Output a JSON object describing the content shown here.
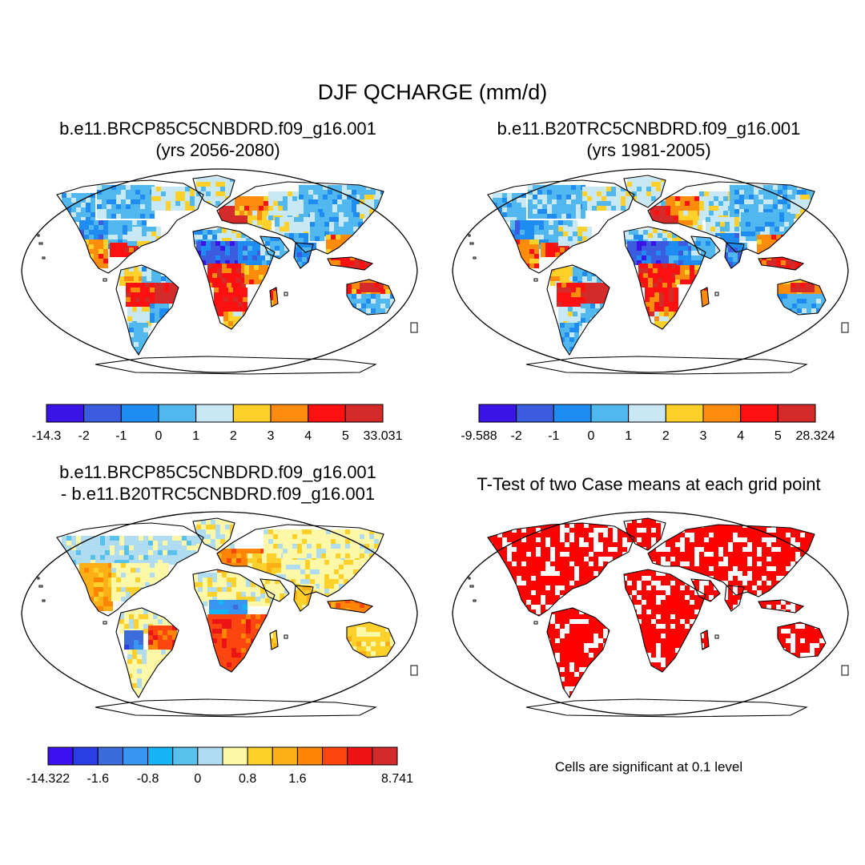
{
  "figure": {
    "title": "DJF QCHARGE (mm/d)"
  },
  "panels": [
    {
      "id": "case1",
      "title_line1": "b.e11.BRCP85C5CNBDRD.f09_g16.001",
      "title_line2": "(yrs 2056-2080)",
      "colorbar": {
        "colors": [
          "#3a14e6",
          "#3b5ce0",
          "#1e8cf0",
          "#50b8ee",
          "#c8e8f6",
          "#fdd02a",
          "#fd8c0c",
          "#fc1010",
          "#d42a2a"
        ],
        "labels": [
          "-14.3",
          "-2",
          "-1",
          "0",
          "1",
          "2",
          "3",
          "4",
          "5",
          "33.031"
        ]
      }
    },
    {
      "id": "case2",
      "title_line1": "b.e11.B20TRC5CNBDRD.f09_g16.001",
      "title_line2": "(yrs 1981-2005)",
      "colorbar": {
        "colors": [
          "#3a14e6",
          "#3b5ce0",
          "#1e8cf0",
          "#50b8ee",
          "#c8e8f6",
          "#fdd02a",
          "#fd8c0c",
          "#fc1010",
          "#d42a2a"
        ],
        "labels": [
          "-9.588",
          "-2",
          "-1",
          "0",
          "1",
          "2",
          "3",
          "4",
          "5",
          "28.324"
        ]
      }
    },
    {
      "id": "diff",
      "title_line1": "b.e11.BRCP85C5CNBDRD.f09_g16.001",
      "title_line2": "- b.e11.B20TRC5CNBDRD.f09_g16.001",
      "colorbar": {
        "colors": [
          "#3a10f0",
          "#2a3ee6",
          "#3c6cdc",
          "#3896f2",
          "#14b4f6",
          "#58c0ec",
          "#b0dcf2",
          "#fcf8a8",
          "#fdd02a",
          "#fdb016",
          "#fd8404",
          "#fc4610",
          "#ec1414",
          "#d42a2a"
        ],
        "labels": [
          "-14.322",
          "",
          "-1.6",
          "",
          "-0.8",
          "",
          "0",
          "",
          "0.8",
          "",
          "1.6",
          "",
          "",
          "",
          "8.741"
        ]
      }
    },
    {
      "id": "ttest",
      "title_line1": "T-Test of two Case means at each grid point",
      "note": "Cells are significant at 0.1 level",
      "significant_color": "#ff0000"
    }
  ]
}
